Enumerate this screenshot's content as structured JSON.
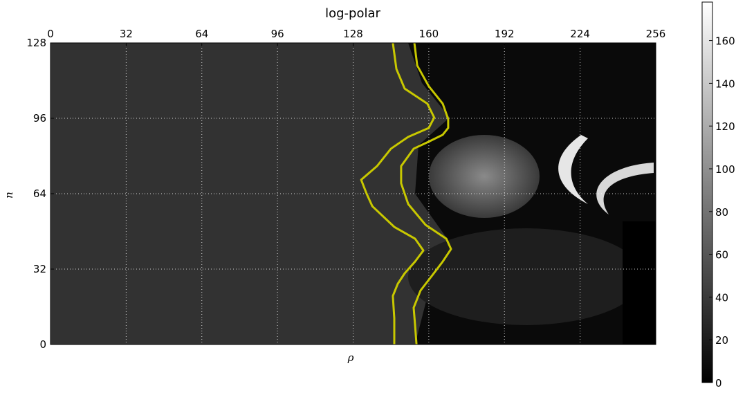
{
  "chart_data": {
    "type": "line",
    "title": "log-polar",
    "xlabel": "ρ",
    "ylabel": "n",
    "xlim": [
      0,
      256
    ],
    "ylim": [
      0,
      128
    ],
    "xticks": [
      0,
      32,
      64,
      96,
      128,
      160,
      192,
      224,
      256
    ],
    "yticks": [
      0,
      32,
      64,
      96,
      128
    ],
    "grid": true,
    "colorbar": {
      "lim": [
        0,
        178
      ],
      "ticks": [
        0,
        20,
        40,
        60,
        80,
        100,
        120,
        140,
        160
      ]
    },
    "series": [
      {
        "color": "#c8c800",
        "x": [
          144.8,
          146.3,
          149.8,
          159.4,
          162.3,
          160.0,
          151.3,
          144.0,
          138.1,
          131.4,
          133.7,
          136.1,
          145.4,
          154.2,
          157.7,
          154.2,
          149.8,
          146.9,
          144.8,
          145.4,
          145.4
        ],
        "values": [
          128,
          116.9,
          108.6,
          102.2,
          96.3,
          91.9,
          88.1,
          83.1,
          75.7,
          69.9,
          64.0,
          58.7,
          49.9,
          44.9,
          39.9,
          35.2,
          30.2,
          25.8,
          20.6,
          11.2,
          0
        ]
      },
      {
        "color": "#c8c800",
        "x": [
          153.9,
          155.1,
          160.0,
          165.9,
          168.2,
          168.2,
          165.9,
          160.0,
          153.6,
          148.3,
          148.3,
          151.3,
          158.6,
          167.4,
          169.4,
          165.9,
          161.5,
          156.5,
          153.6,
          154.2,
          154.8
        ],
        "values": [
          128,
          118.4,
          109.6,
          102.2,
          95.7,
          91.9,
          89.0,
          86.1,
          83.1,
          75.7,
          68.4,
          59.6,
          50.8,
          44.9,
          40.5,
          35.2,
          29.4,
          22.9,
          15.6,
          8.2,
          0
        ]
      }
    ]
  }
}
